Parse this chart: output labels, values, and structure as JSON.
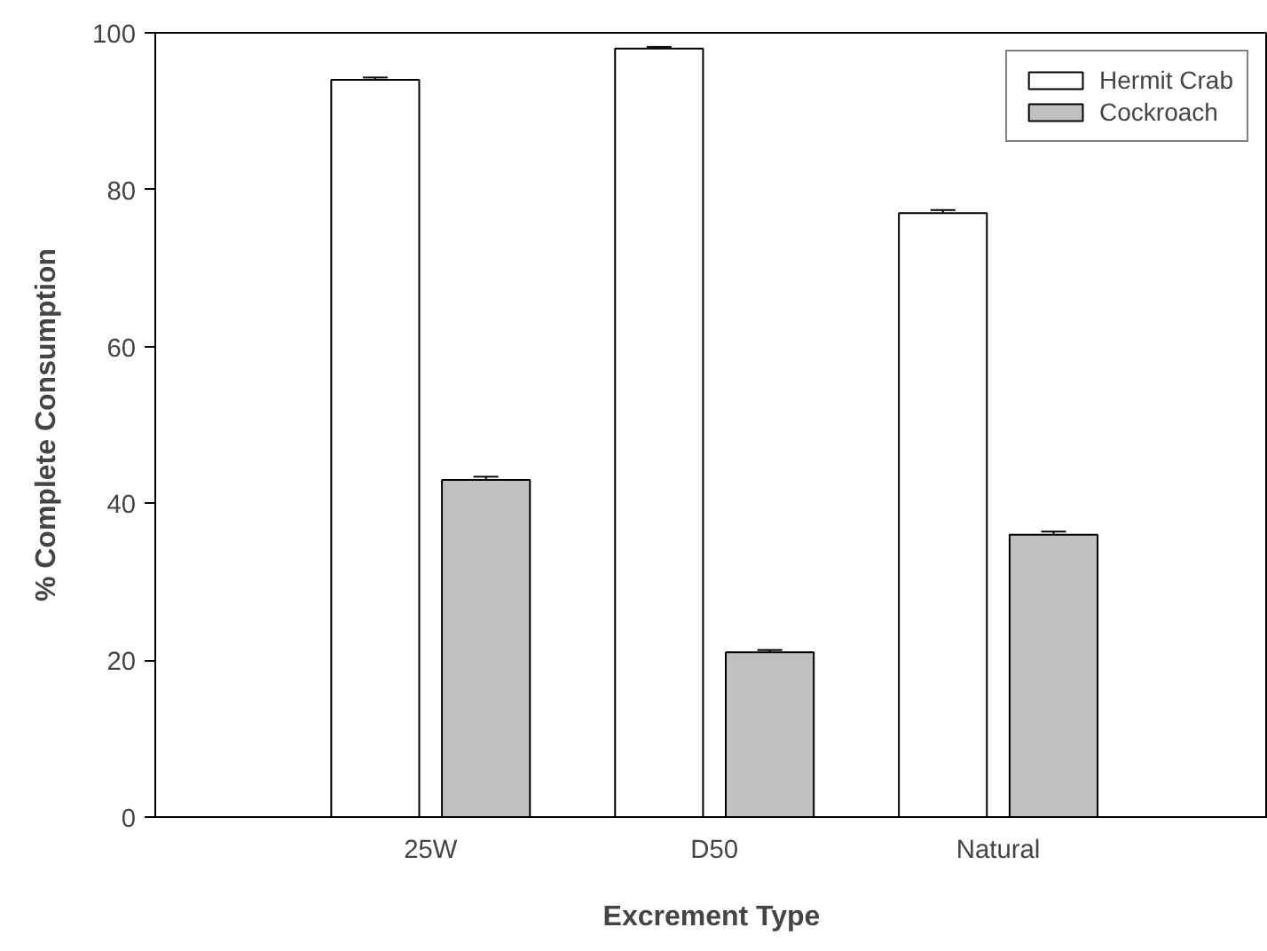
{
  "chart_data": {
    "type": "bar",
    "xlabel": "Excrement Type",
    "ylabel": "% Complete Consumption",
    "categories": [
      "25W",
      "D50",
      "Natural"
    ],
    "series": [
      {
        "name": "Hermit Crab",
        "color": "#ffffff",
        "values": [
          94,
          98,
          77
        ],
        "errors": [
          0.3,
          0.2,
          0.4
        ]
      },
      {
        "name": "Cockroach",
        "color": "#c0c0c0",
        "values": [
          43,
          21,
          36
        ],
        "errors": [
          0.4,
          0.3,
          0.4
        ]
      }
    ],
    "ylim": [
      0,
      100
    ],
    "yticks": [
      0,
      20,
      40,
      60,
      80,
      100
    ],
    "grid": false,
    "legend": "top right"
  }
}
